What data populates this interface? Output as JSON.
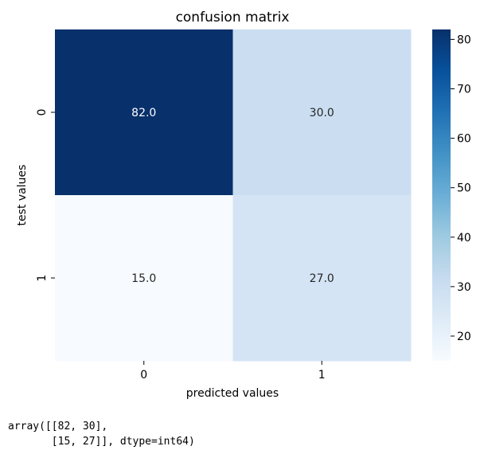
{
  "chart_data": {
    "type": "heatmap",
    "title": "confusion matrix",
    "xlabel": "predicted values",
    "ylabel": "test values",
    "x_categories": [
      "0",
      "1"
    ],
    "y_categories": [
      "0",
      "1"
    ],
    "values": [
      [
        82,
        30
      ],
      [
        15,
        27
      ]
    ],
    "annotations": [
      [
        "82.0",
        "30.0"
      ],
      [
        "15.0",
        "27.0"
      ]
    ],
    "colormap": "Blues",
    "colorbar": {
      "range": [
        15,
        82
      ],
      "ticks": [
        20,
        30,
        40,
        50,
        60,
        70,
        80
      ]
    }
  },
  "output": {
    "lines": [
      "array([[82, 30],",
      "       [15, 27]], dtype=int64)"
    ]
  }
}
